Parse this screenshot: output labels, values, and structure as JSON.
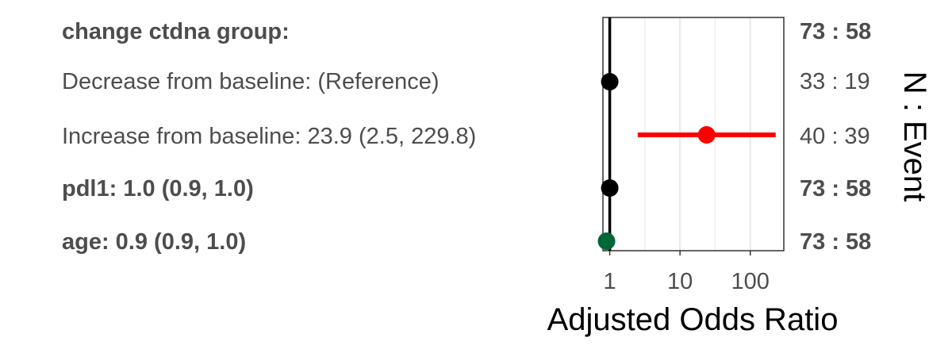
{
  "chart_data": {
    "type": "forest",
    "xlabel": "Adjusted Odds Ratio",
    "right_axis_label": "N : Event",
    "x_scale": "log10",
    "xlim": [
      0.8,
      300
    ],
    "x_ticks": [
      {
        "value": 1,
        "label": "1"
      },
      {
        "value": 10,
        "label": "10"
      },
      {
        "value": 100,
        "label": "100"
      }
    ],
    "reference_line": 1,
    "grid": true,
    "rows": [
      {
        "label": "change ctdna group:",
        "bold": true,
        "count": "73 : 58",
        "count_bold": true,
        "estimate": null,
        "lower": null,
        "upper": null,
        "color": null
      },
      {
        "label": "Decrease from baseline: (Reference)",
        "bold": false,
        "count": "33 : 19",
        "count_bold": false,
        "estimate": 1.0,
        "lower": null,
        "upper": null,
        "color": "#000000"
      },
      {
        "label": "Increase from baseline: 23.9 (2.5, 229.8)",
        "bold": false,
        "count": "40 : 39",
        "count_bold": false,
        "estimate": 23.9,
        "lower": 2.5,
        "upper": 229.8,
        "color": "#ff0000"
      },
      {
        "label": "pdl1: 1.0 (0.9, 1.0)",
        "bold": true,
        "count": "73 : 58",
        "count_bold": true,
        "estimate": 1.0,
        "lower": 0.9,
        "upper": 1.0,
        "color": "#000000"
      },
      {
        "label": "age: 0.9 (0.9, 1.0)",
        "bold": true,
        "count": "73 : 58",
        "count_bold": true,
        "estimate": 0.9,
        "lower": 0.9,
        "upper": 1.0,
        "color": "#006837"
      }
    ]
  }
}
